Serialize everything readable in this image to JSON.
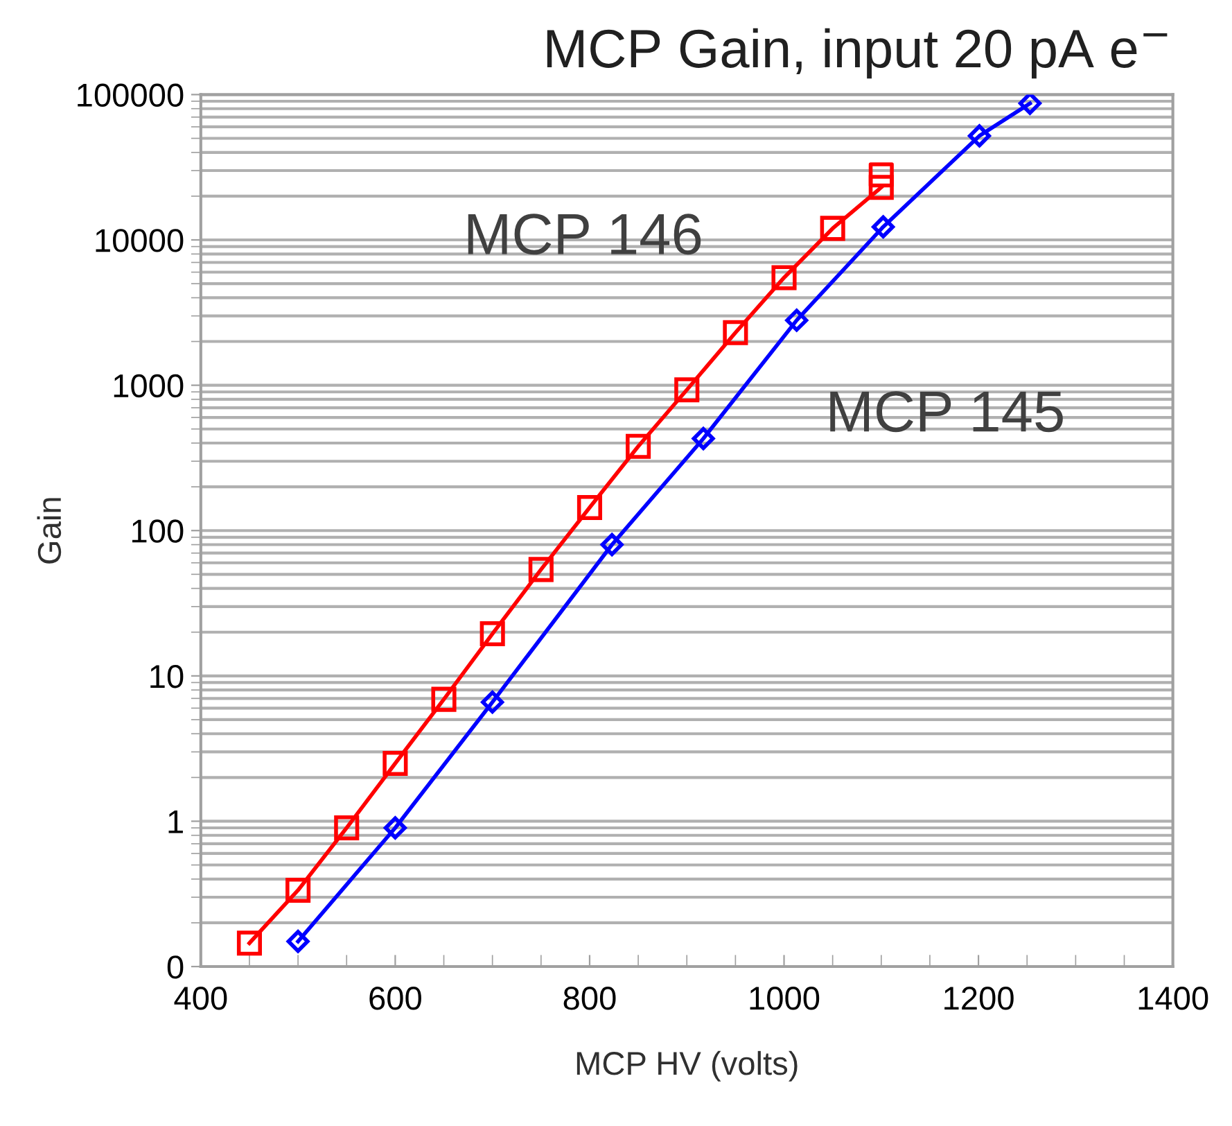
{
  "chart_data": {
    "type": "line",
    "title": "MCP Gain, input 20 pA e$^{−}$",
    "xlabel": "MCP HV (volts)",
    "ylabel": "Gain",
    "log": "y",
    "xlim": [
      400,
      1400
    ],
    "xticks": [
      400,
      600,
      800,
      1000,
      1200,
      1400
    ],
    "ylim": [
      0.1,
      100000
    ],
    "yticks": [
      {
        "value": 0.1,
        "label": "0"
      },
      1,
      10,
      100,
      1000,
      10000,
      100000
    ],
    "grid": "y",
    "legend": false,
    "line_style": "solid",
    "series": [
      {
        "name": "MCP 146",
        "color": "#ff0000",
        "marker": "square",
        "x": [
          450,
          500,
          550,
          600,
          650,
          700,
          750,
          800,
          850,
          900,
          950,
          1000,
          1050,
          1100
        ],
        "values": [
          0.145,
          0.335,
          0.9,
          2.5,
          6.9,
          19.5,
          54,
          144,
          380,
          930,
          2300,
          5500,
          12000,
          23000
        ]
      },
      {
        "type": "scatter",
        "color": "#ff0000",
        "marker": "square",
        "x": [
          1100
        ],
        "values": [
          28000
        ]
      },
      {
        "name": "MCP 145",
        "color": "#0000ff",
        "marker": "diamond",
        "x": [
          500,
          600,
          700,
          823,
          917,
          1013,
          1102,
          1201,
          1253
        ],
        "values": [
          0.149,
          0.9,
          6.6,
          80,
          430,
          2800,
          12300,
          52000,
          87000
        ]
      }
    ]
  }
}
